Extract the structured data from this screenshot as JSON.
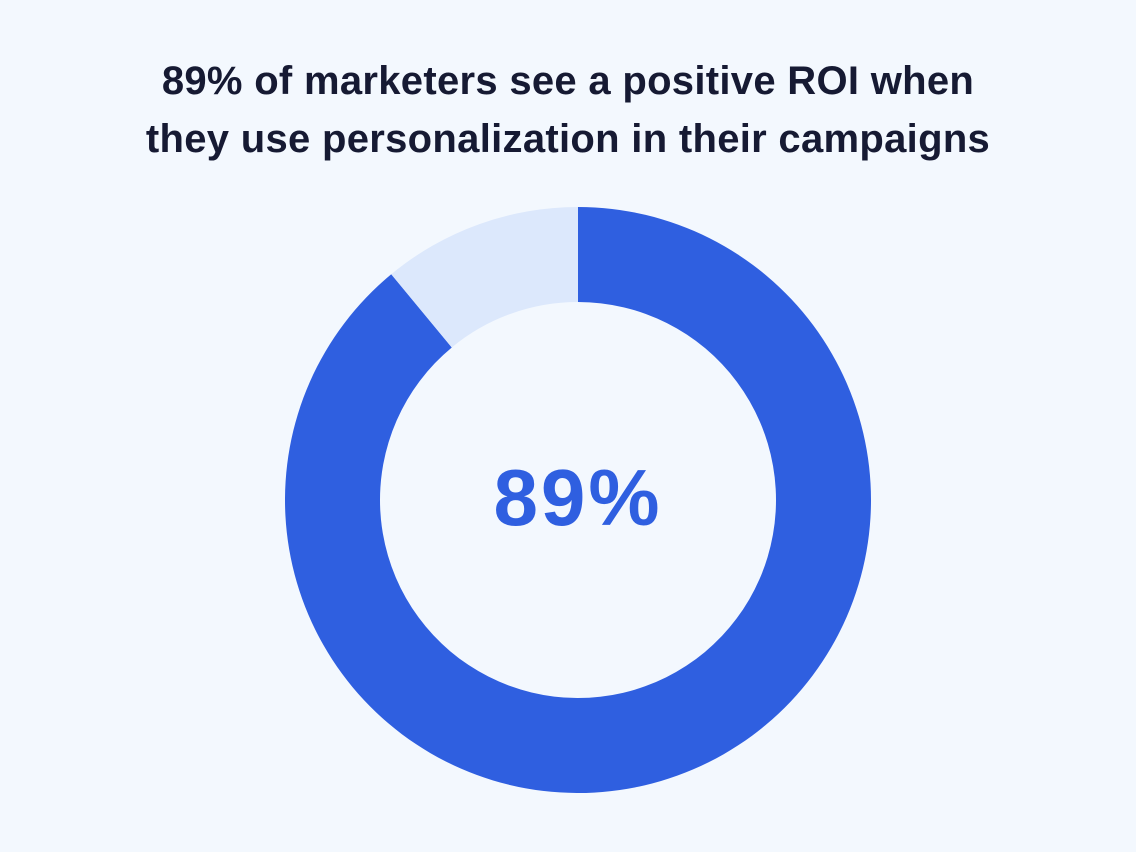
{
  "chart_data": {
    "type": "donut",
    "title": "89% of marketers see a positive ROI when they use personalization in their campaigns",
    "values": [
      89,
      11
    ],
    "value_labels": [
      "89%",
      null
    ],
    "colors": [
      "#2f5fe0",
      "#dce8fc"
    ]
  }
}
